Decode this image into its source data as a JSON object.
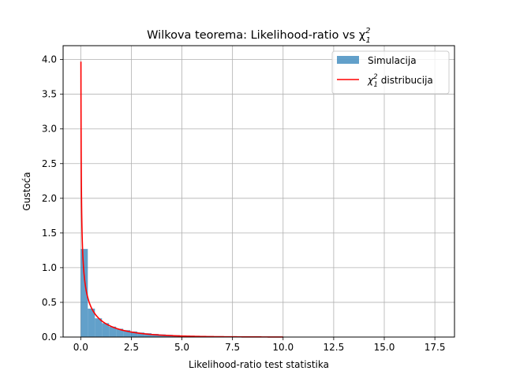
{
  "chart_data": {
    "type": "bar",
    "title": "Wilkova teorema: Likelihood-ratio vs χ",
    "title_math_sup": "2",
    "title_math_sub": "1",
    "xlabel": "Likelihood-ratio test statistika",
    "ylabel": "Gustoća",
    "xlim": [
      -0.87,
      18.47
    ],
    "ylim": [
      0,
      4.2
    ],
    "xticks": [
      0.0,
      2.5,
      5.0,
      7.5,
      10.0,
      12.5,
      15.0,
      17.5
    ],
    "xtick_labels": [
      "0.0",
      "2.5",
      "5.0",
      "7.5",
      "10.0",
      "12.5",
      "15.0",
      "17.5"
    ],
    "yticks": [
      0.0,
      0.5,
      1.0,
      1.5,
      2.0,
      2.5,
      3.0,
      3.5,
      4.0
    ],
    "ytick_labels": [
      "0.0",
      "0.5",
      "1.0",
      "1.5",
      "2.0",
      "2.5",
      "3.0",
      "3.5",
      "4.0"
    ],
    "grid": true,
    "legend_position": "top-right",
    "histogram": {
      "name": "Simulacija",
      "color": "#1f77b4",
      "alpha": 0.7,
      "bin_width": 0.35,
      "bin_start": 0.0,
      "values": [
        1.27,
        0.41,
        0.27,
        0.2,
        0.15,
        0.12,
        0.1,
        0.08,
        0.065,
        0.055,
        0.045,
        0.038,
        0.032,
        0.027,
        0.022,
        0.019,
        0.016,
        0.013,
        0.011,
        0.009,
        0.008,
        0.006,
        0.005,
        0.004,
        0.0035,
        0.003,
        0.0025,
        0.002,
        0.0015,
        0.001,
        0.001,
        0.0008,
        0.0006,
        0.0005,
        0.0004,
        0.0003,
        0.0002,
        0.0002,
        0.0001,
        0.0001,
        0.0001,
        0.0001,
        0.0001,
        0.0001,
        0.0001,
        0.0001,
        0.0001,
        0.0001,
        0.0001,
        0.0001
      ]
    },
    "line": {
      "name": "χ",
      "name_math_sup": "2",
      "name_math_sub": "1",
      "name_suffix": " distribucija",
      "color": "#ff0000",
      "function": "chi2_pdf_df1",
      "x_range": [
        0.01,
        10.0
      ]
    }
  }
}
